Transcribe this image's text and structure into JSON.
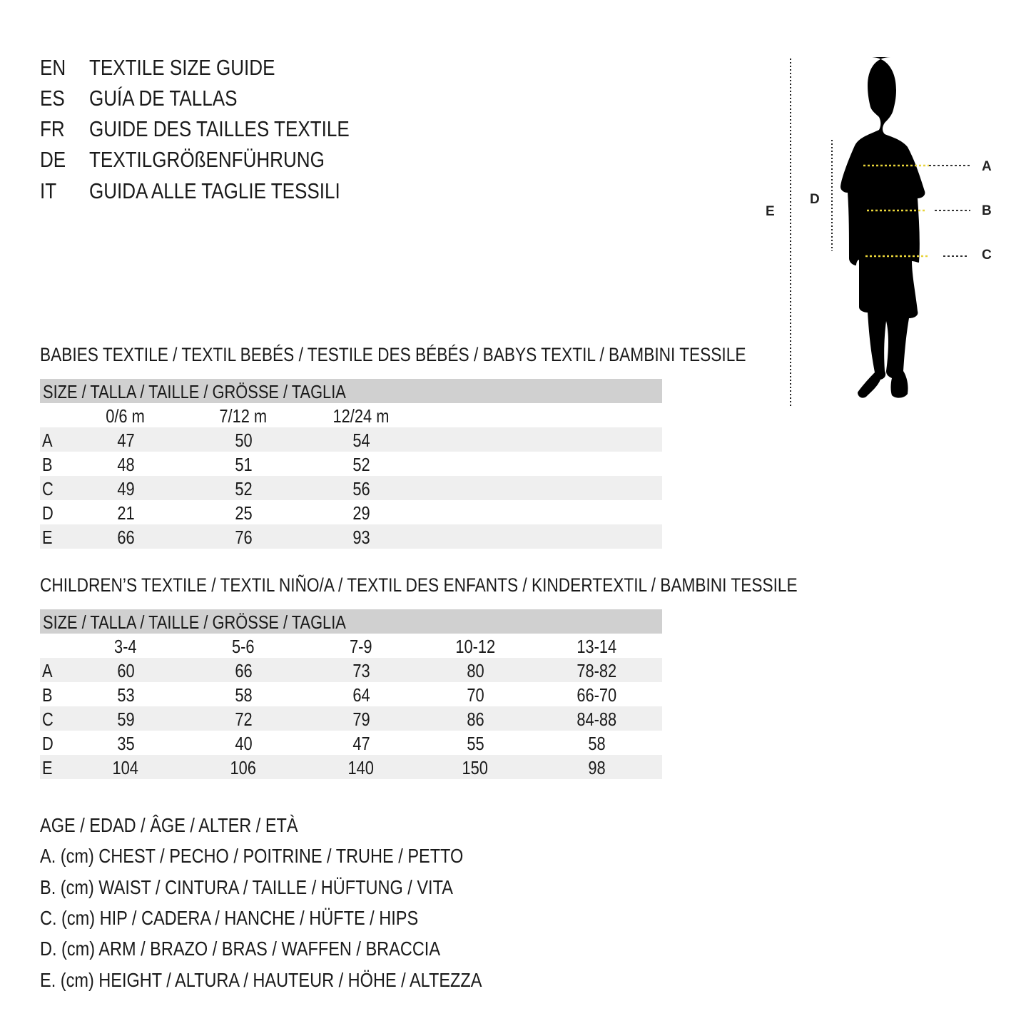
{
  "languages": [
    {
      "code": "EN",
      "text": "TEXTILE SIZE GUIDE"
    },
    {
      "code": "ES",
      "text": "GUÍA DE TALLAS"
    },
    {
      "code": "FR",
      "text": "GUIDE DES TAILLES TEXTILE"
    },
    {
      "code": "DE",
      "text": "TEXTILGRÖßENFÜHRUNG"
    },
    {
      "code": "IT",
      "text": "GUIDA ALLE TAGLIE TESSILI"
    }
  ],
  "figure": {
    "labels": {
      "a": "A",
      "b": "B",
      "c": "C",
      "d": "D",
      "e": "E"
    },
    "marker_color": "#e8d43a"
  },
  "babies": {
    "title": "BABIES TEXTILE / TEXTIL BEBÉS / TESTILE DES BÉBÉS / BABYS TEXTIL / BAMBINI TESSILE",
    "header": "SIZE / TALLA / TAILLE / GRÖSSE / TAGLIA",
    "columns": [
      "0/6 m",
      "7/12 m",
      "12/24 m"
    ],
    "rows": [
      {
        "label": "A",
        "values": [
          "47",
          "50",
          "54"
        ]
      },
      {
        "label": "B",
        "values": [
          "48",
          "51",
          "52"
        ]
      },
      {
        "label": "C",
        "values": [
          "49",
          "52",
          "56"
        ]
      },
      {
        "label": "D",
        "values": [
          "21",
          "25",
          "29"
        ]
      },
      {
        "label": "E",
        "values": [
          "66",
          "76",
          "93"
        ]
      }
    ]
  },
  "children": {
    "title": "CHILDREN’S TEXTILE / TEXTIL NIÑO/A / TEXTIL DES ENFANTS / KINDERTEXTIL / BAMBINI TESSILE",
    "header": "SIZE / TALLA / TAILLE / GRÖSSE / TAGLIA",
    "columns": [
      "3-4",
      "5-6",
      "7-9",
      "10-12",
      "13-14"
    ],
    "rows": [
      {
        "label": "A",
        "values": [
          "60",
          "66",
          "73",
          "80",
          "78-82"
        ]
      },
      {
        "label": "B",
        "values": [
          "53",
          "58",
          "64",
          "70",
          "66-70"
        ]
      },
      {
        "label": "C",
        "values": [
          "59",
          "72",
          "79",
          "86",
          "84-88"
        ]
      },
      {
        "label": "D",
        "values": [
          "35",
          "40",
          "47",
          "55",
          "58"
        ]
      },
      {
        "label": "E",
        "values": [
          "104",
          "106",
          "140",
          "150",
          "98"
        ]
      }
    ]
  },
  "legend": [
    "AGE / EDAD / ÂGE / ALTER / ETÀ",
    "A. (cm) CHEST / PECHO / POITRINE / TRUHE / PETTO",
    "B. (cm) WAIST / CINTURA / TAILLE / HÜFTUNG / VITA",
    "C. (cm) HIP / CADERA / HANCHE / HÜFTE / HIPS",
    "D. (cm) ARM / BRAZO / BRAS / WAFFEN / BRACCIA",
    "E. (cm) HEIGHT / ALTURA / HAUTEUR / HÖHE / ALTEZZA"
  ]
}
